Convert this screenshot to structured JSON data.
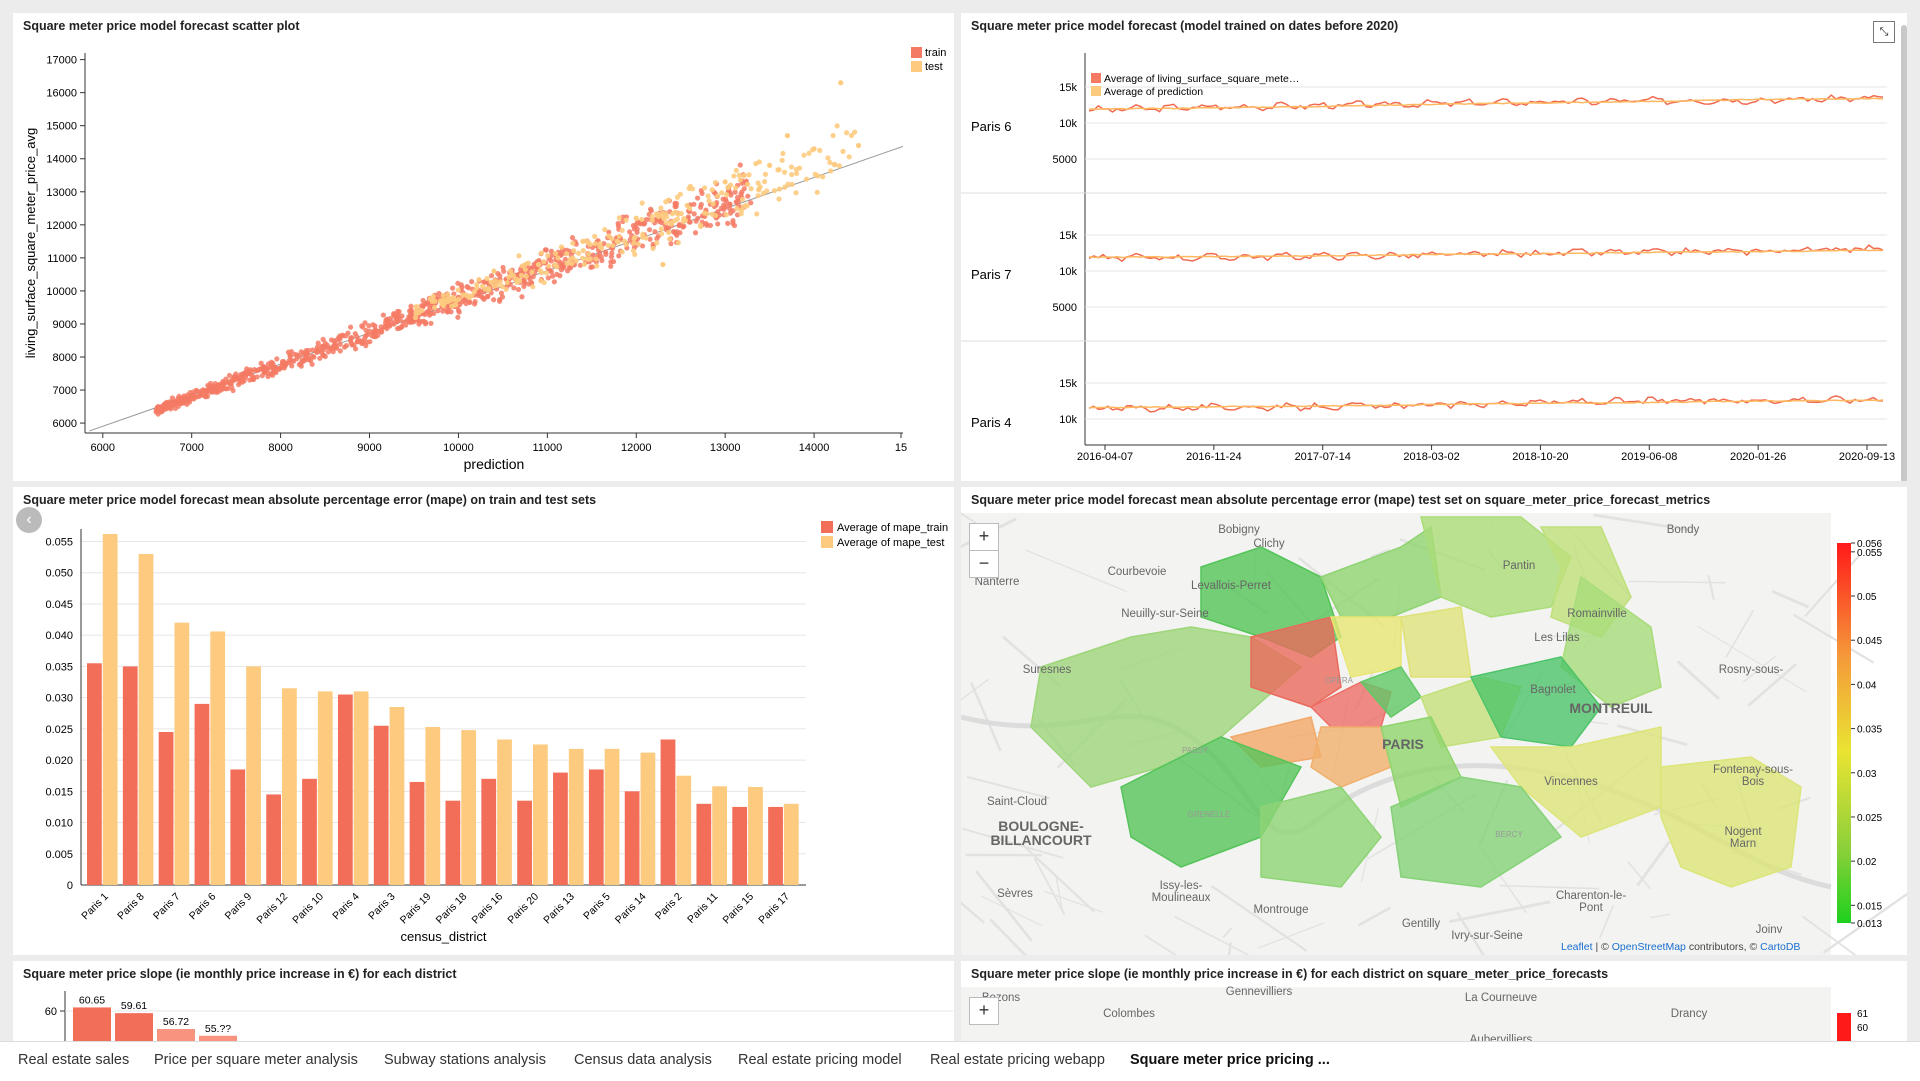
{
  "tabs": [
    {
      "label": "Real estate sales",
      "x": 16
    },
    {
      "label": "Price per square meter analysis",
      "x": 152
    },
    {
      "label": "Subway stations analysis",
      "x": 382
    },
    {
      "label": "Census data analysis",
      "x": 572
    },
    {
      "label": "Real estate pricing model",
      "x": 736
    },
    {
      "label": "Real estate pricing webapp",
      "x": 928
    },
    {
      "label": "Square meter price pricing ...",
      "x": 1128,
      "active": true
    }
  ],
  "colors": {
    "train": "#f57a64",
    "test": "#fdcb80"
  },
  "scatter": {
    "title": "Square meter price model forecast scatter plot",
    "xlabel": "prediction",
    "ylabel": "living_surface_square_meter_price_avg",
    "legend": [
      "train",
      "test"
    ],
    "xticks": [
      "6000",
      "7000",
      "8000",
      "9000",
      "10000",
      "11000",
      "12000",
      "13000",
      "14000",
      "15"
    ],
    "yticks": [
      "6000",
      "7000",
      "8000",
      "9000",
      "10000",
      "11000",
      "12000",
      "13000",
      "14000",
      "15000",
      "16000",
      "17000"
    ]
  },
  "lines": {
    "title": "Square meter price model forecast (model trained on dates before 2020)",
    "legend": [
      "Average of living_surface_square_mete…",
      "Average of prediction"
    ],
    "facets": [
      "Paris 6",
      "Paris 7",
      "Paris 4"
    ],
    "yticks": [
      "15k",
      "10k",
      "5000"
    ],
    "xticks": [
      "2016-04-07",
      "2016-11-24",
      "2017-07-14",
      "2018-03-02",
      "2018-10-20",
      "2019-06-08",
      "2020-01-26",
      "2020-09-13"
    ]
  },
  "mape": {
    "title": "Square meter price model forecast mean absolute percentage error (mape) on train and test sets",
    "xlabel": "census_district",
    "legend": [
      "Average of mape_train",
      "Average of mape_test"
    ],
    "yticks": [
      "0",
      "0.005",
      "0.010",
      "0.015",
      "0.020",
      "0.025",
      "0.030",
      "0.035",
      "0.040",
      "0.045",
      "0.050",
      "0.055"
    ]
  },
  "map1": {
    "title": "Square meter price model forecast mean absolute percentage error (mape) test set on square_meter_price_forecast_metrics",
    "places": [
      "Bobigny",
      "Clichy",
      "Bondy",
      "Courbevoie",
      "Levallois-Perret",
      "Pantin",
      "Nanterre",
      "Neuilly-sur-Seine",
      "Romainville",
      "Les Lilas",
      "Suresnes",
      "Rosny-sous-",
      "Bagnolet",
      "MONTREUIL",
      "PARIS",
      "Vincennes",
      "Fontenay-sous-",
      "Bois",
      "Saint-Cloud",
      "BOULOGNE-",
      "BILLANCOURT",
      "Nogent",
      "Marn",
      "Sèvres",
      "Issy-les-",
      "Moulineaux",
      "Charenton-le-",
      "Pont",
      "Montrouge",
      "Gentilly",
      "Joinv",
      "Ivry-sur-Seine",
      "PASSY",
      "GRENELLE",
      "OPERA",
      "BERCY"
    ],
    "attribution": [
      "Leaflet",
      "| ©",
      "OpenStreetMap",
      "contributors, ©",
      "CartoDB"
    ],
    "scale": [
      "0.056",
      "0.055",
      "0.05",
      "0.045",
      "0.04",
      "0.035",
      "0.03",
      "0.025",
      "0.02",
      "0.015",
      "0.013"
    ],
    "zoom_in": "+",
    "zoom_out": "−"
  },
  "slope": {
    "title": "Square meter price slope (ie monthly price increase in €) for each district",
    "ytick": "60",
    "labels": [
      "60.65",
      "59.61",
      "56.72",
      "55.??"
    ]
  },
  "map2": {
    "title": "Square meter price slope (ie monthly price increase in €) for each district on square_meter_price_forecasts",
    "places": [
      "Bezons",
      "Gennevilliers",
      "Colombes",
      "La Courneuve",
      "Drancy",
      "Aubervilliers"
    ],
    "scale": [
      "61",
      "60"
    ],
    "zoom_in": "+",
    "zoom_out": "−"
  },
  "chart_data": [
    {
      "type": "scatter",
      "title": "Square meter price model forecast scatter plot",
      "xlabel": "prediction",
      "ylabel": "living_surface_square_meter_price_avg",
      "xlim": [
        5800,
        15000
      ],
      "ylim": [
        5700,
        17200
      ],
      "series": [
        {
          "name": "train",
          "points": [
            [
              6600,
              6650
            ],
            [
              7000,
              6950
            ],
            [
              7400,
              7200
            ],
            [
              7800,
              7550
            ],
            [
              8000,
              7700
            ],
            [
              8300,
              8050
            ],
            [
              8600,
              8300
            ],
            [
              8900,
              8600
            ],
            [
              9200,
              8950
            ],
            [
              9500,
              9150
            ],
            [
              9800,
              9500
            ],
            [
              10000,
              9800
            ],
            [
              10300,
              10050
            ],
            [
              10600,
              10300
            ],
            [
              10900,
              10700
            ],
            [
              11200,
              11000
            ],
            [
              11500,
              11250
            ],
            [
              11800,
              11700
            ],
            [
              12100,
              12000
            ],
            [
              12400,
              12250
            ],
            [
              12800,
              12750
            ],
            [
              13100,
              13150
            ],
            [
              10200,
              11400
            ],
            [
              9700,
              8700
            ],
            [
              11300,
              12800
            ]
          ]
        },
        {
          "name": "test",
          "points": [
            [
              9800,
              9700
            ],
            [
              10400,
              10600
            ],
            [
              10900,
              10800
            ],
            [
              11400,
              11500
            ],
            [
              12000,
              12200
            ],
            [
              12600,
              12500
            ],
            [
              13000,
              13300
            ],
            [
              13500,
              13800
            ],
            [
              14000,
              14300
            ],
            [
              14300,
              16300
            ],
            [
              14500,
              14400
            ],
            [
              12300,
              10800
            ],
            [
              13700,
              14700
            ]
          ]
        }
      ]
    },
    {
      "type": "line",
      "title": "Square meter price model forecast (model trained on dates before 2020)",
      "x": [
        "2016-04-07",
        "2016-11-24",
        "2017-07-14",
        "2018-03-02",
        "2018-10-20",
        "2019-06-08",
        "2020-01-26",
        "2020-09-13"
      ],
      "facets": [
        {
          "name": "Paris 6",
          "series": [
            {
              "name": "Average of living_surface_square_mete…",
              "values": [
                11800,
                12200,
                12400,
                12700,
                12900,
                13100,
                13200,
                13500
              ]
            },
            {
              "name": "Average of prediction",
              "values": [
                11900,
                12100,
                12300,
                12600,
                12800,
                13000,
                13300,
                13400
              ]
            }
          ]
        },
        {
          "name": "Paris 7",
          "series": [
            {
              "name": "Average of living_surface_square_mete…",
              "values": [
                11800,
                11900,
                12100,
                12200,
                12500,
                12600,
                12800,
                13200
              ]
            },
            {
              "name": "Average of prediction",
              "values": [
                11900,
                12000,
                12100,
                12300,
                12400,
                12600,
                12700,
                12900
              ]
            }
          ]
        },
        {
          "name": "Paris 4",
          "series": [
            {
              "name": "Average of living_surface_square_mete…",
              "values": [
                11400,
                11600,
                11700,
                11900,
                12300,
                12500,
                12600,
                12700
              ]
            },
            {
              "name": "Average of prediction",
              "values": [
                11600,
                11700,
                11800,
                12000,
                12200,
                12300,
                12500,
                12600
              ]
            }
          ]
        }
      ]
    },
    {
      "type": "bar",
      "title": "Square meter price model forecast mean absolute percentage error (mape) on train and test sets",
      "xlabel": "census_district",
      "ylim": [
        0,
        0.057
      ],
      "categories": [
        "Paris 1",
        "Paris 8",
        "Paris 7",
        "Paris 6",
        "Paris 9",
        "Paris 12",
        "Paris 10",
        "Paris 4",
        "Paris 3",
        "Paris 19",
        "Paris 18",
        "Paris 16",
        "Paris 20",
        "Paris 13",
        "Paris 5",
        "Paris 14",
        "Paris 2",
        "Paris 11",
        "Paris 15",
        "Paris 17"
      ],
      "series": [
        {
          "name": "Average of mape_train",
          "values": [
            0.0355,
            0.035,
            0.0245,
            0.029,
            0.0185,
            0.0145,
            0.017,
            0.0305,
            0.0255,
            0.0165,
            0.0135,
            0.017,
            0.0135,
            0.018,
            0.0185,
            0.015,
            0.0233,
            0.013,
            0.0125,
            0.0125
          ]
        },
        {
          "name": "Average of mape_test",
          "values": [
            0.0562,
            0.053,
            0.042,
            0.0406,
            0.035,
            0.0315,
            0.031,
            0.031,
            0.0285,
            0.0253,
            0.0248,
            0.0233,
            0.0225,
            0.0218,
            0.0218,
            0.0212,
            0.0175,
            0.0158,
            0.0157,
            0.013
          ]
        }
      ]
    },
    {
      "type": "bar",
      "title": "Square meter price slope (ie monthly price increase in €) for each district",
      "values": [
        60.65,
        59.61,
        56.72,
        55.5
      ]
    }
  ]
}
